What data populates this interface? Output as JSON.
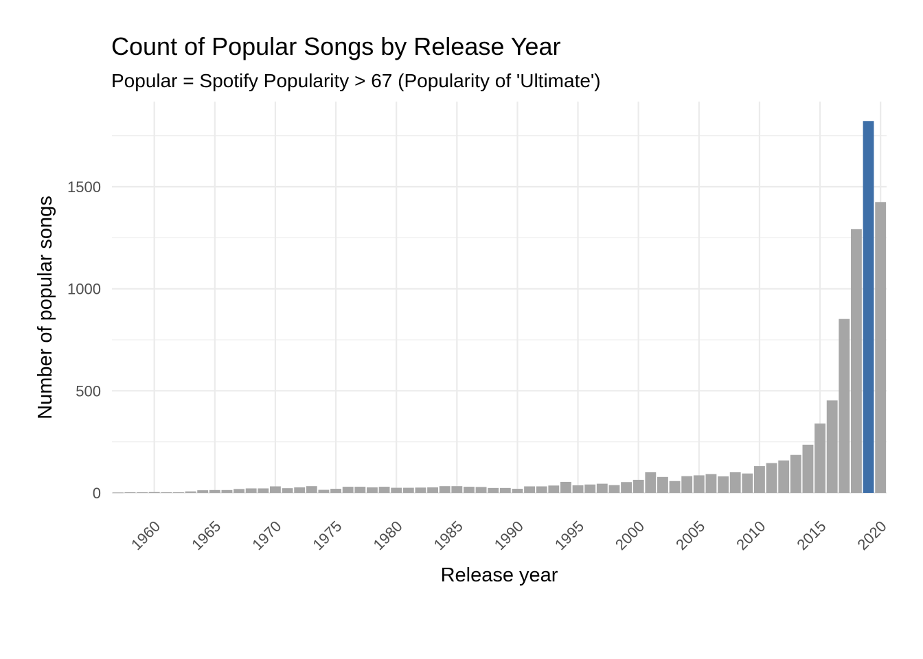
{
  "chart_data": {
    "type": "bar",
    "title": "Count of Popular Songs by Release Year",
    "subtitle": "Popular = Spotify Popularity > 67 (Popularity of 'Ultimate')",
    "xlabel": "Release year",
    "ylabel": "Number of popular songs",
    "x_ticks": [
      "1960",
      "1965",
      "1970",
      "1975",
      "1980",
      "1985",
      "1990",
      "1995",
      "2000",
      "2005",
      "2010",
      "2015",
      "2020"
    ],
    "y_ticks": [
      "0",
      "500",
      "1000",
      "1500"
    ],
    "xlim": [
      1956.5,
      2020.5
    ],
    "ylim": [
      0,
      1900
    ],
    "grid": true,
    "colors": {
      "default": "#a6a6a6",
      "highlight": "#3e6fa8"
    },
    "highlight_year": 2019,
    "years": [
      1957,
      1958,
      1959,
      1960,
      1961,
      1962,
      1963,
      1964,
      1965,
      1966,
      1967,
      1968,
      1969,
      1970,
      1971,
      1972,
      1973,
      1974,
      1975,
      1976,
      1977,
      1978,
      1979,
      1980,
      1981,
      1982,
      1983,
      1984,
      1985,
      1986,
      1987,
      1988,
      1989,
      1990,
      1991,
      1992,
      1993,
      1994,
      1995,
      1996,
      1997,
      1998,
      1999,
      2000,
      2001,
      2002,
      2003,
      2004,
      2005,
      2006,
      2007,
      2008,
      2009,
      2010,
      2011,
      2012,
      2013,
      2014,
      2015,
      2016,
      2017,
      2018,
      2019,
      2020
    ],
    "values": [
      2,
      3,
      3,
      4,
      3,
      3,
      7,
      13,
      14,
      14,
      19,
      22,
      22,
      32,
      23,
      27,
      33,
      15,
      20,
      30,
      30,
      27,
      30,
      25,
      25,
      26,
      27,
      33,
      33,
      30,
      29,
      24,
      24,
      20,
      32,
      32,
      36,
      54,
      37,
      41,
      45,
      38,
      53,
      64,
      101,
      78,
      58,
      82,
      86,
      92,
      81,
      101,
      95,
      131,
      146,
      159,
      186,
      236,
      340,
      453,
      852,
      1292,
      1822,
      1425
    ]
  }
}
